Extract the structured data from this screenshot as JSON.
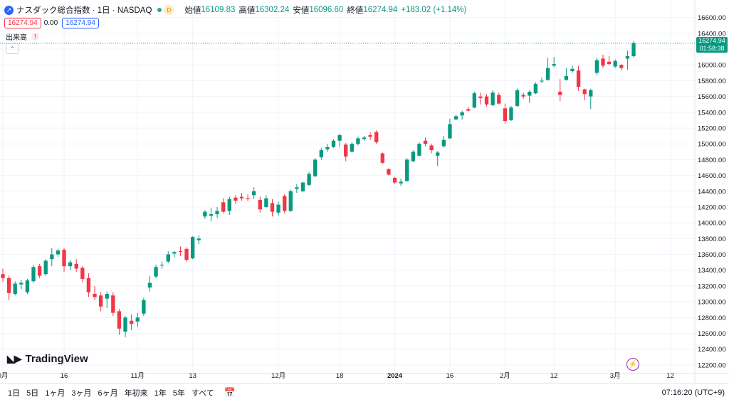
{
  "header": {
    "title": "ナスダック総合指数 · 1日 · NASDAQ",
    "badge": "D",
    "open_label": "始値",
    "open": "16109.83",
    "high_label": "高値",
    "high": "16302.24",
    "low_label": "安値",
    "low": "16096.60",
    "close_label": "終値",
    "close": "16274.94",
    "change": "+183.02 (+1.14%)"
  },
  "row2": {
    "price_red": "16274.94",
    "zero": "0.00",
    "price_blue": "16274.94"
  },
  "volume_label": "出来高",
  "logo_text": "TradingView",
  "price_tag": {
    "price": "16274.94",
    "countdown": "01:58:38"
  },
  "bottom": {
    "ranges": [
      "1日",
      "5日",
      "1ヶ月",
      "3ヶ月",
      "6ヶ月",
      "年初来",
      "1年",
      "5年",
      "すべて"
    ],
    "clock": "07:16:20 (UTC+9)"
  },
  "colors": {
    "up": "#089981",
    "down": "#f23645",
    "accent": "#2962ff"
  },
  "chart_data": {
    "type": "candlestick",
    "y_ticks": [
      "16600.00",
      "16400.00",
      "16200.00",
      "16000.00",
      "15800.00",
      "15600.00",
      "15400.00",
      "15200.00",
      "15000.00",
      "14800.00",
      "14600.00",
      "14400.00",
      "14200.00",
      "14000.00",
      "13800.00",
      "13600.00",
      "13400.00",
      "13200.00",
      "13000.00",
      "12800.00",
      "12600.00",
      "12400.00",
      "12200.00"
    ],
    "x_ticks": [
      "0月",
      "16",
      "11月",
      "13",
      "12月",
      "18",
      "2024",
      "16",
      "2月",
      "12",
      "3月",
      "12"
    ],
    "ylim": [
      12100,
      16750
    ],
    "last_price": 16274.94,
    "ohlc": [
      [
        13350,
        13420,
        13250,
        13300
      ],
      [
        13300,
        13330,
        13020,
        13110
      ],
      [
        13100,
        13260,
        13080,
        13230
      ],
      [
        13220,
        13280,
        13160,
        13240
      ],
      [
        13120,
        13290,
        13100,
        13270
      ],
      [
        13260,
        13470,
        13240,
        13440
      ],
      [
        13450,
        13480,
        13300,
        13330
      ],
      [
        13350,
        13540,
        13330,
        13520
      ],
      [
        13540,
        13680,
        13450,
        13600
      ],
      [
        13600,
        13670,
        13570,
        13650
      ],
      [
        13660,
        13680,
        13380,
        13450
      ],
      [
        13450,
        13530,
        13400,
        13500
      ],
      [
        13480,
        13540,
        13380,
        13420
      ],
      [
        13430,
        13450,
        13250,
        13290
      ],
      [
        13300,
        13360,
        13060,
        13120
      ],
      [
        13100,
        13200,
        13020,
        13060
      ],
      [
        13080,
        13120,
        12880,
        12940
      ],
      [
        13040,
        13130,
        12920,
        13100
      ],
      [
        13080,
        13120,
        12820,
        12860
      ],
      [
        12880,
        12910,
        12580,
        12660
      ],
      [
        12620,
        12820,
        12550,
        12800
      ],
      [
        12760,
        12840,
        12640,
        12720
      ],
      [
        12750,
        12860,
        12680,
        12800
      ],
      [
        12850,
        13050,
        12820,
        13020
      ],
      [
        13180,
        13330,
        13130,
        13240
      ],
      [
        13320,
        13470,
        13300,
        13440
      ],
      [
        13460,
        13510,
        13420,
        13470
      ],
      [
        13510,
        13640,
        13490,
        13600
      ],
      [
        13610,
        13640,
        13560,
        13630
      ],
      [
        13640,
        13700,
        13580,
        13630
      ],
      [
        13670,
        13690,
        13510,
        13530
      ],
      [
        13550,
        13830,
        13540,
        13820
      ],
      [
        13780,
        13840,
        13730,
        13800
      ],
      [
        14080,
        14160,
        14050,
        14140
      ],
      [
        14090,
        14190,
        14020,
        14110
      ],
      [
        14110,
        14200,
        14060,
        14150
      ],
      [
        14260,
        14310,
        14120,
        14140
      ],
      [
        14150,
        14330,
        14100,
        14300
      ],
      [
        14320,
        14350,
        14240,
        14280
      ],
      [
        14330,
        14380,
        14280,
        14310
      ],
      [
        14310,
        14360,
        14280,
        14300
      ],
      [
        14350,
        14450,
        14300,
        14400
      ],
      [
        14290,
        14330,
        14130,
        14170
      ],
      [
        14200,
        14350,
        14190,
        14310
      ],
      [
        14250,
        14300,
        14080,
        14140
      ],
      [
        14130,
        14270,
        14090,
        14230
      ],
      [
        14340,
        14360,
        14120,
        14150
      ],
      [
        14150,
        14420,
        14140,
        14400
      ],
      [
        14430,
        14490,
        14380,
        14450
      ],
      [
        14400,
        14520,
        14390,
        14510
      ],
      [
        14480,
        14640,
        14470,
        14620
      ],
      [
        14590,
        14820,
        14580,
        14800
      ],
      [
        14830,
        14950,
        14800,
        14920
      ],
      [
        14930,
        15000,
        14900,
        14960
      ],
      [
        14960,
        15060,
        14950,
        15040
      ],
      [
        15040,
        15130,
        14960,
        15110
      ],
      [
        14990,
        15010,
        14780,
        14840
      ],
      [
        14900,
        15020,
        14890,
        15000
      ],
      [
        15000,
        15090,
        14980,
        15070
      ],
      [
        15060,
        15100,
        15040,
        15080
      ],
      [
        15110,
        15150,
        15050,
        15090
      ],
      [
        15150,
        15170,
        15000,
        15020
      ],
      [
        14880,
        14890,
        14750,
        14760
      ],
      [
        14680,
        14690,
        14600,
        14610
      ],
      [
        14570,
        14580,
        14490,
        14510
      ],
      [
        14500,
        14560,
        14470,
        14520
      ],
      [
        14530,
        14820,
        14520,
        14800
      ],
      [
        14780,
        14920,
        14770,
        14900
      ],
      [
        14850,
        15020,
        14840,
        15000
      ],
      [
        15040,
        15080,
        14970,
        15000
      ],
      [
        14980,
        15000,
        14880,
        14920
      ],
      [
        14850,
        14910,
        14720,
        14890
      ],
      [
        14970,
        15100,
        14950,
        15050
      ],
      [
        15070,
        15320,
        15060,
        15250
      ],
      [
        15310,
        15370,
        15300,
        15350
      ],
      [
        15360,
        15420,
        15310,
        15400
      ],
      [
        15440,
        15470,
        15410,
        15420
      ],
      [
        15460,
        15660,
        15450,
        15640
      ],
      [
        15600,
        15650,
        15500,
        15580
      ],
      [
        15600,
        15630,
        15470,
        15500
      ],
      [
        15490,
        15680,
        15480,
        15650
      ],
      [
        15620,
        15650,
        15500,
        15510
      ],
      [
        15450,
        15510,
        15260,
        15290
      ],
      [
        15300,
        15480,
        15290,
        15460
      ],
      [
        15480,
        15700,
        15470,
        15680
      ],
      [
        15620,
        15650,
        15570,
        15600
      ],
      [
        15610,
        15680,
        15520,
        15660
      ],
      [
        15640,
        15780,
        15630,
        15760
      ],
      [
        15790,
        15840,
        15770,
        15800
      ],
      [
        15810,
        16090,
        15800,
        15960
      ],
      [
        15990,
        16100,
        15970,
        16010
      ],
      [
        15660,
        15820,
        15540,
        15620
      ],
      [
        15810,
        15960,
        15800,
        15860
      ],
      [
        15920,
        15990,
        15900,
        15950
      ],
      [
        15930,
        15990,
        15670,
        15720
      ],
      [
        15690,
        15700,
        15550,
        15630
      ],
      [
        15600,
        15700,
        15440,
        15680
      ],
      [
        15900,
        16090,
        15870,
        16060
      ],
      [
        16080,
        16130,
        15960,
        15990
      ],
      [
        16040,
        16110,
        15990,
        16010
      ],
      [
        15980,
        16070,
        15960,
        16050
      ],
      [
        16000,
        16010,
        15930,
        15960
      ],
      [
        16080,
        16180,
        15940,
        16110
      ],
      [
        16110,
        16302,
        16097,
        16275
      ]
    ]
  }
}
